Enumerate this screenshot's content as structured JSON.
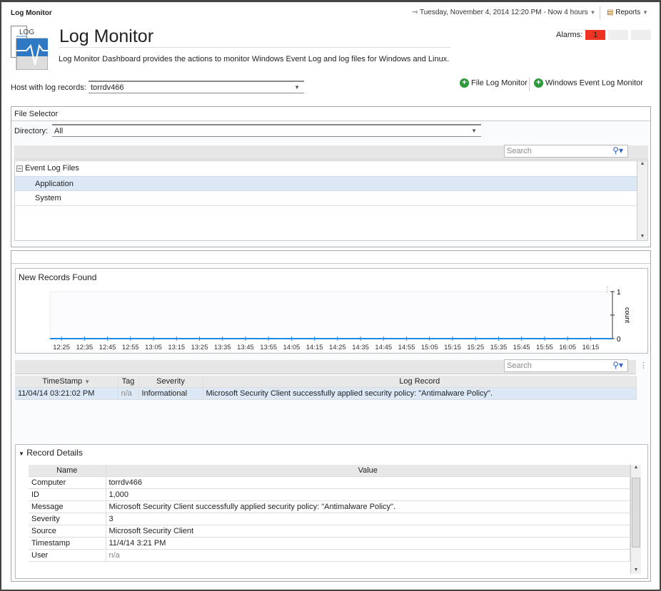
{
  "header": {
    "breadcrumb": "Log Monitor",
    "time_range": "Tuesday, November 4, 2014 12:20 PM - Now 4 hours",
    "reports": "Reports",
    "title": "Log Monitor",
    "description": "Log Monitor Dashboard provides the actions to monitor Windows Event Log and log files for Windows and Linux.",
    "alarms_label": "Alarms:",
    "alarm_counts": [
      "1",
      "",
      ""
    ],
    "alarm_color": "#ee3322"
  },
  "host": {
    "label": "Host with log records:",
    "value": "torrdv466"
  },
  "actions": {
    "file_log": "File Log Monitor",
    "windows_event_log": "Windows Event Log Monitor"
  },
  "file_selector": {
    "title": "File Selector",
    "directory_label": "Directory:",
    "directory_value": "All",
    "search_placeholder": "Search",
    "tree_root": "Event Log Files",
    "items": [
      "Application",
      "System"
    ],
    "selected": "Application"
  },
  "chart_data": {
    "type": "line",
    "title": "New Records Found",
    "ylabel": "count",
    "ylim": [
      0,
      1
    ],
    "yticks": [
      "0",
      "1"
    ],
    "categories": [
      "12:25",
      "12:35",
      "12:45",
      "12:55",
      "13:05",
      "13:15",
      "13:25",
      "13:35",
      "13:45",
      "13:55",
      "14:05",
      "14:15",
      "14:25",
      "14:35",
      "14:45",
      "14:55",
      "15:05",
      "15:15",
      "15:25",
      "15:35",
      "15:45",
      "15:55",
      "16:05",
      "16:15"
    ],
    "values": [
      0,
      0,
      0,
      0,
      0,
      0,
      0,
      0,
      0,
      0,
      0,
      0,
      0,
      0,
      0,
      0,
      0,
      0,
      0,
      0,
      0,
      0,
      0,
      0
    ],
    "color": "#1e88e5",
    "grid": false
  },
  "records": {
    "search_placeholder": "Search",
    "columns": [
      "TimeStamp",
      "Tag",
      "Severity",
      "Log Record"
    ],
    "rows": [
      {
        "timestamp": "11/04/14 03:21:02 PM",
        "tag": "n/a",
        "severity": "Informational",
        "record": "Microsoft Security Client successfully applied security policy: \"Antimalware Policy\"."
      }
    ]
  },
  "details": {
    "title": "Record Details",
    "columns": [
      "Name",
      "Value"
    ],
    "rows": [
      {
        "name": "Computer",
        "value": "torrdv466"
      },
      {
        "name": "ID",
        "value": "1,000"
      },
      {
        "name": "Message",
        "value": "Microsoft Security Client successfully applied security policy: \"Antimalware Policy\"."
      },
      {
        "name": "Severity",
        "value": "3"
      },
      {
        "name": "Source",
        "value": "Microsoft Security Client"
      },
      {
        "name": "Timestamp",
        "value": "11/4/14 3:21 PM"
      },
      {
        "name": "User",
        "value": "n/a"
      }
    ]
  }
}
